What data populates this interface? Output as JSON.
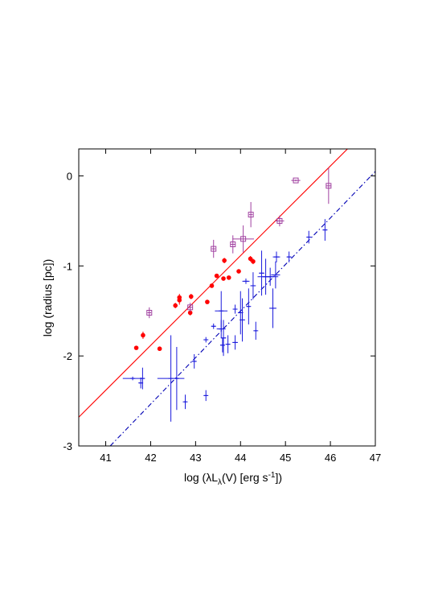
{
  "chart_data": {
    "type": "scatter",
    "title": "",
    "xlabel": {
      "pre": "log (",
      "lambda": "λL",
      "sub": "λ",
      "mid": "(V) [erg s",
      "sup": "-1",
      "post": "])"
    },
    "ylabel": "log (radius [pc])",
    "xlim": [
      40.4,
      47
    ],
    "ylim": [
      -3,
      0.3
    ],
    "xticks": [
      41,
      42,
      43,
      44,
      45,
      46,
      47
    ],
    "yticks": [
      -3,
      -2,
      -1,
      0
    ],
    "grid": false,
    "legend": "none",
    "colors": {
      "red": "#ff0000",
      "blue": "#1a1adc",
      "purple": "#a040a0",
      "fit_blue": "#0000b4"
    },
    "fit_lines": [
      {
        "name": "",
        "style": "solid",
        "color": "#ff0000",
        "x": [
          40.4,
          46.4
        ],
        "y": [
          -2.68,
          0.31
        ]
      },
      {
        "name": "",
        "style": "dash-dot",
        "color": "#0000b4",
        "x": [
          41.1,
          47
        ],
        "y": [
          -3.0,
          0.05
        ]
      }
    ],
    "series": [
      {
        "name": "",
        "marker": "filled-circle",
        "color": "#ff0000",
        "points": [
          {
            "x": 41.68,
            "y": -1.91,
            "yerr": 0.02
          },
          {
            "x": 41.83,
            "y": -1.77,
            "yerr": 0.04
          },
          {
            "x": 42.2,
            "y": -1.92,
            "yerr": 0.02
          },
          {
            "x": 42.55,
            "y": -1.44,
            "yerr": 0.03
          },
          {
            "x": 42.64,
            "y": -1.38,
            "yerr": 0.05
          },
          {
            "x": 42.64,
            "y": -1.35,
            "yerr": 0.04
          },
          {
            "x": 42.88,
            "y": -1.52,
            "yerr": 0.03
          },
          {
            "x": 42.9,
            "y": -1.34,
            "yerr": 0.03
          },
          {
            "x": 43.26,
            "y": -1.4,
            "yerr": 0.02
          },
          {
            "x": 43.36,
            "y": -1.22,
            "yerr": 0.02
          },
          {
            "x": 43.47,
            "y": -1.11,
            "yerr": 0.02
          },
          {
            "x": 43.64,
            "y": -0.94,
            "yerr": 0.03
          },
          {
            "x": 43.62,
            "y": -1.14,
            "yerr": 0.02
          },
          {
            "x": 43.74,
            "y": -1.13,
            "yerr": 0.02
          },
          {
            "x": 43.96,
            "y": -1.06,
            "yerr": 0.02
          },
          {
            "x": 44.22,
            "y": -0.92,
            "yerr": 0.03
          },
          {
            "x": 44.28,
            "y": -0.95,
            "yerr": 0.03
          }
        ]
      },
      {
        "name": "",
        "marker": "open-square",
        "color": "#a040a0",
        "points": [
          {
            "x": 41.97,
            "y": -1.52,
            "yerr": 0.06,
            "xerr": 0.04
          },
          {
            "x": 42.88,
            "y": -1.46,
            "yerr": 0.05,
            "xerr": 0.06
          },
          {
            "x": 43.4,
            "y": -0.81,
            "yerr": 0.1,
            "xerr": 0.04
          },
          {
            "x": 43.83,
            "y": -0.76,
            "yerr": 0.1,
            "xerr": 0.06
          },
          {
            "x": 44.06,
            "y": -0.7,
            "yerr": 0.15,
            "xerr": 0.24
          },
          {
            "x": 44.23,
            "y": -0.43,
            "yerr": 0.14,
            "xerr": 0.04
          },
          {
            "x": 44.87,
            "y": -0.5,
            "yerr": 0.06,
            "xerr": 0.1
          },
          {
            "x": 45.23,
            "y": -0.05,
            "yerr": 0.01,
            "xerr": 0.1
          },
          {
            "x": 45.96,
            "y": -0.11,
            "yerr": 0.2,
            "xerr": 0.06
          }
        ]
      },
      {
        "name": "",
        "marker": "cross",
        "color": "#1a1adc",
        "points": [
          {
            "x": 41.6,
            "y": -2.25,
            "xerr": 0.22,
            "yerr": 0.02
          },
          {
            "x": 41.82,
            "y": -2.25,
            "xerr": 0.04,
            "yerr": 0.12
          },
          {
            "x": 41.78,
            "y": -2.3,
            "xerr": 0.04,
            "yerr": 0.06
          },
          {
            "x": 42.45,
            "y": -2.25,
            "xerr": 0.3,
            "yerr": 0.48
          },
          {
            "x": 42.58,
            "y": -2.25,
            "xerr": 0.04,
            "yerr": 0.35
          },
          {
            "x": 42.77,
            "y": -2.51,
            "xerr": 0.03,
            "yerr": 0.08
          },
          {
            "x": 42.97,
            "y": -2.06,
            "xerr": 0.05,
            "yerr": 0.08
          },
          {
            "x": 43.23,
            "y": -2.44,
            "xerr": 0.04,
            "yerr": 0.06
          },
          {
            "x": 43.23,
            "y": -1.82,
            "xerr": 0.04,
            "yerr": 0.03
          },
          {
            "x": 43.4,
            "y": -1.67,
            "xerr": 0.05,
            "yerr": 0.03
          },
          {
            "x": 43.57,
            "y": -1.5,
            "xerr": 0.14,
            "yerr": 0.22
          },
          {
            "x": 43.57,
            "y": -1.7,
            "xerr": 0.1,
            "yerr": 0.1
          },
          {
            "x": 43.62,
            "y": -1.8,
            "xerr": 0.06,
            "yerr": 0.2
          },
          {
            "x": 43.6,
            "y": -1.88,
            "xerr": 0.05,
            "yerr": 0.08
          },
          {
            "x": 43.72,
            "y": -1.87,
            "xerr": 0.05,
            "yerr": 0.1
          },
          {
            "x": 43.88,
            "y": -1.85,
            "xerr": 0.06,
            "yerr": 0.08
          },
          {
            "x": 43.88,
            "y": -1.48,
            "xerr": 0.04,
            "yerr": 0.05
          },
          {
            "x": 44.0,
            "y": -1.52,
            "xerr": 0.06,
            "yerr": 0.24
          },
          {
            "x": 44.04,
            "y": -1.6,
            "xerr": 0.06,
            "yerr": 0.24
          },
          {
            "x": 44.12,
            "y": -1.17,
            "xerr": 0.08,
            "yerr": 0.03
          },
          {
            "x": 44.18,
            "y": -1.45,
            "xerr": 0.04,
            "yerr": 0.2
          },
          {
            "x": 44.28,
            "y": -1.22,
            "xerr": 0.06,
            "yerr": 0.15
          },
          {
            "x": 44.34,
            "y": -1.72,
            "xerr": 0.03,
            "yerr": 0.1
          },
          {
            "x": 44.47,
            "y": -1.08,
            "xerr": 0.06,
            "yerr": 0.25
          },
          {
            "x": 44.56,
            "y": -1.12,
            "xerr": 0.18,
            "yerr": 0.2
          },
          {
            "x": 44.66,
            "y": -1.12,
            "xerr": 0.18,
            "yerr": 0.1
          },
          {
            "x": 44.72,
            "y": -1.47,
            "xerr": 0.08,
            "yerr": 0.22
          },
          {
            "x": 44.78,
            "y": -1.1,
            "xerr": 0.1,
            "yerr": 0.15
          },
          {
            "x": 44.8,
            "y": -0.9,
            "xerr": 0.08,
            "yerr": 0.06
          },
          {
            "x": 45.08,
            "y": -0.9,
            "xerr": 0.05,
            "yerr": 0.06
          },
          {
            "x": 45.52,
            "y": -0.68,
            "xerr": 0.05,
            "yerr": 0.07
          },
          {
            "x": 45.88,
            "y": -0.6,
            "xerr": 0.05,
            "yerr": 0.12
          }
        ]
      }
    ]
  }
}
